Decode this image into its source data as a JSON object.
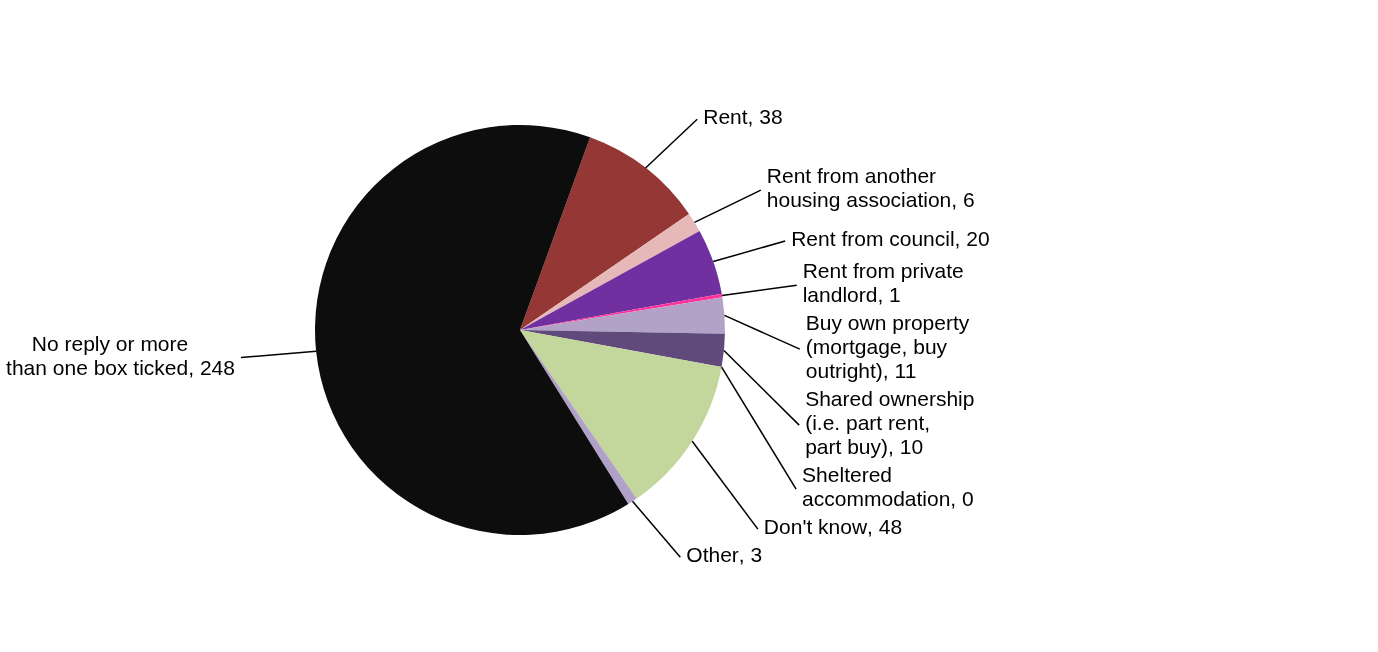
{
  "chart_data": {
    "type": "pie",
    "categories": [
      "Rent",
      "Rent from another housing association",
      "Rent from council",
      "Rent from private landlord",
      "Buy own property (mortgage, buy outright)",
      "Shared ownership (i.e. part rent, part buy)",
      "Sheltered accommodation",
      "Don't know",
      "Other",
      "No reply or more than one box ticked"
    ],
    "values": [
      38,
      6,
      20,
      1,
      11,
      10,
      0,
      48,
      3,
      248
    ],
    "value_labels": [
      ", 38",
      ", 6",
      ", 20",
      ", 1",
      ", 11",
      ", 10",
      ", 0",
      ", 48",
      ", 3",
      ", 248"
    ],
    "colors": [
      "#953735",
      "#e6b9b8",
      "#7030a0",
      "#ff3399",
      "#b3a2c7",
      "#604a7b",
      "#4bacc6",
      "#c3d69b",
      "#b1a0c7",
      "#0d0d0d"
    ]
  }
}
